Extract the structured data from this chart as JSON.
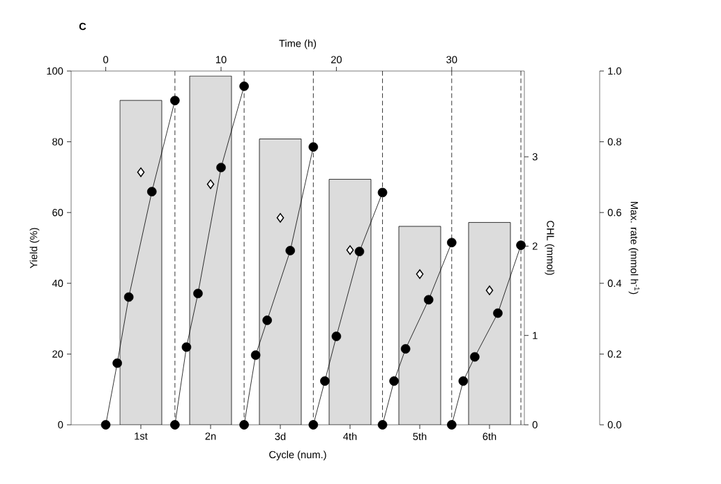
{
  "chart_data": [
    {
      "type": "bar",
      "annotations": [
        "C"
      ],
      "xlabel": "Cycle (num.)",
      "ylabel": "Yield (%)",
      "y2label": "Max. rate (mmol h$^{-1}$)",
      "categories": [
        "1st",
        "2n",
        "3d",
        "4th",
        "5th",
        "6th"
      ],
      "ylim": [
        0,
        100
      ],
      "yticks": [
        0,
        20,
        40,
        60,
        80,
        100
      ],
      "y2lim": [
        0,
        1
      ],
      "y2ticks": [
        {
          "value": 0,
          "label": "0.0"
        },
        {
          "value": 0.2,
          "label": "0.2"
        },
        {
          "value": 0.4,
          "label": "0.4"
        },
        {
          "value": 0.6,
          "label": "0.6"
        },
        {
          "value": 0.8,
          "label": "0.8"
        },
        {
          "value": 1,
          "label": "1.0"
        }
      ],
      "series": [
        {
          "color": "#dcdcdc",
          "values": [
            91.7,
            98.6,
            80.8,
            69.4,
            56.1,
            57.2
          ]
        },
        {
          "type": "scatter",
          "axis": "y2",
          "marker": "diamond",
          "color": "#ffffff",
          "x": [
            "1st",
            "2n",
            "3d",
            "4th",
            "5th",
            "6th"
          ],
          "values": [
            0.714,
            0.68,
            0.585,
            0.494,
            0.426,
            0.38
          ]
        }
      ]
    },
    {
      "type": "line",
      "xlabel": "Time (h)",
      "ylabel": "CHL (mmol)",
      "marker": "circle",
      "line_style": "solid",
      "xlim": [
        -3,
        36.3
      ],
      "xticks": [
        0,
        10,
        20,
        30
      ],
      "ylim": [
        0,
        3.96
      ],
      "yticks": [
        0,
        1,
        2,
        3
      ],
      "ref_lines": [
        {
          "axis": "x",
          "value": 6,
          "line_style": "dashed",
          "color": "#000000"
        },
        {
          "axis": "x",
          "value": 12,
          "line_style": "dashed",
          "color": "#000000"
        },
        {
          "axis": "x",
          "value": 18,
          "line_style": "dashed",
          "color": "#000000"
        },
        {
          "axis": "x",
          "value": 24,
          "line_style": "dashed",
          "color": "#000000"
        },
        {
          "axis": "x",
          "value": 30,
          "line_style": "dashed",
          "color": "#000000"
        },
        {
          "axis": "x",
          "value": 36,
          "line_style": "dashed",
          "color": "#000000"
        }
      ],
      "series": [
        {
          "color": "#000000",
          "x": [
            0,
            1,
            2,
            4,
            6
          ],
          "values": [
            0,
            0.69,
            1.43,
            2.61,
            3.63
          ]
        },
        {
          "color": "#000000",
          "x": [
            6,
            7,
            8,
            10,
            12
          ],
          "values": [
            0,
            0.87,
            1.47,
            2.88,
            3.79
          ]
        },
        {
          "color": "#000000",
          "x": [
            12,
            13,
            14,
            16,
            18
          ],
          "values": [
            0,
            0.78,
            1.17,
            1.95,
            3.11
          ]
        },
        {
          "color": "#000000",
          "x": [
            18,
            19,
            20,
            22,
            24
          ],
          "values": [
            0,
            0.49,
            0.99,
            1.94,
            2.6
          ]
        },
        {
          "color": "#000000",
          "x": [
            24,
            25,
            26,
            28,
            30
          ],
          "values": [
            0,
            0.49,
            0.85,
            1.4,
            2.04
          ]
        },
        {
          "color": "#000000",
          "x": [
            30,
            31,
            32,
            34,
            36
          ],
          "values": [
            0,
            0.49,
            0.76,
            1.25,
            2.01
          ]
        }
      ]
    }
  ]
}
